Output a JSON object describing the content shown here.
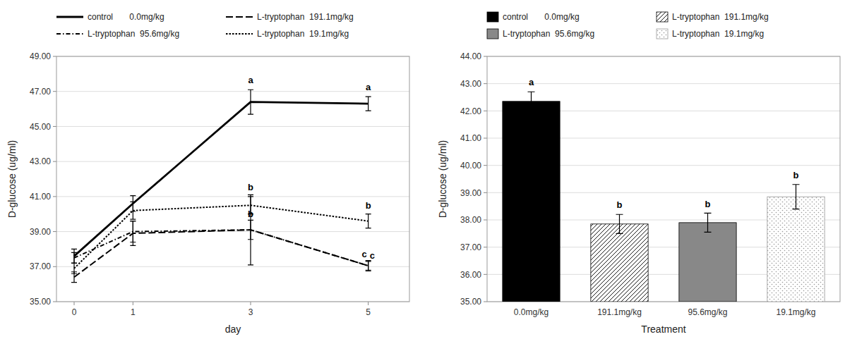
{
  "chart_data": [
    {
      "type": "line",
      "x": [
        0,
        1,
        3,
        5
      ],
      "xlim": [
        -0.3,
        5.7
      ],
      "xticks": [
        0,
        1,
        3,
        5
      ],
      "ylim": [
        35.0,
        49.0
      ],
      "yticks": [
        {
          "value": 35.0,
          "label": "35.00"
        },
        {
          "value": 37.0,
          "label": "37.00"
        },
        {
          "value": 39.0,
          "label": "39.00"
        },
        {
          "value": 41.0,
          "label": "41.00"
        },
        {
          "value": 43.0,
          "label": "43.00"
        },
        {
          "value": 45.0,
          "label": "45.00"
        },
        {
          "value": 47.0,
          "label": "47.00"
        },
        {
          "value": 49.0,
          "label": "49.00"
        }
      ],
      "xlabel": "day",
      "ylabel": "D-glucose (ug/ml)",
      "grid": true,
      "legend": "top-left",
      "series": [
        {
          "name": "control       0.0mg/kg",
          "color": "#000000",
          "line_style": "solid",
          "values": [
            37.6,
            40.6,
            46.4,
            46.3
          ],
          "errors": [
            0.4,
            0.45,
            0.7,
            0.4
          ]
        },
        {
          "name": "L-tryptophan  191.1mg/kg",
          "color": "#000000",
          "line_style": "dashed",
          "values": [
            36.4,
            38.9,
            39.1,
            37.05
          ],
          "errors": [
            0.3,
            0.7,
            2.0,
            0.25
          ]
        },
        {
          "name": "L-tryptophan  95.6mg/kg",
          "color": "#000000",
          "line_style": "dashdot",
          "values": [
            37.5,
            39.0,
            39.1,
            37.05
          ],
          "errors": [
            0.3,
            0.6,
            0.55,
            0.3
          ]
        },
        {
          "name": "L-tryptophan  19.1mg/kg",
          "color": "#000000",
          "line_style": "dotted",
          "values": [
            36.9,
            40.2,
            40.5,
            39.6
          ],
          "errors": [
            0.3,
            0.5,
            0.5,
            0.4
          ]
        }
      ],
      "annotations": [
        {
          "text": "a",
          "x": 3,
          "y": 47.35
        },
        {
          "text": "b",
          "x": 3,
          "y": 41.25
        },
        {
          "text": "b",
          "x": 3,
          "y": 39.7
        },
        {
          "text": "a",
          "x": 5,
          "y": 46.95
        },
        {
          "text": "b",
          "x": 5,
          "y": 40.2
        },
        {
          "text": "c",
          "x": 5,
          "y": 37.4
        },
        {
          "text": "c",
          "x": 5,
          "y": 37.35
        }
      ]
    },
    {
      "type": "bar",
      "categories": [
        "0.0mg/kg",
        "191.1mg/kg",
        "95.6mg/kg",
        "19.1mg/kg"
      ],
      "ylim": [
        35.0,
        44.0
      ],
      "yticks": [
        {
          "value": 35.0,
          "label": "35.00"
        },
        {
          "value": 36.0,
          "label": "36.00"
        },
        {
          "value": 37.0,
          "label": "37.00"
        },
        {
          "value": 38.0,
          "label": "38.00"
        },
        {
          "value": 39.0,
          "label": "39.00"
        },
        {
          "value": 40.0,
          "label": "40.00"
        },
        {
          "value": 41.0,
          "label": "41.00"
        },
        {
          "value": 42.0,
          "label": "42.00"
        },
        {
          "value": 43.0,
          "label": "43.00"
        },
        {
          "value": 44.0,
          "label": "44.00"
        }
      ],
      "xlabel": "Treatment",
      "ylabel": "D-glucose (ug/ml)",
      "grid": true,
      "legend": "top-left",
      "series": [
        {
          "name": "control       0.0mg/kg",
          "color": "#000000",
          "values": [
            42.35,
            null,
            null,
            null
          ],
          "errors": [
            0.35,
            null,
            null,
            null
          ]
        },
        {
          "name": "L-tryptophan  191.1mg/kg",
          "color": "#ffffff",
          "values": [
            null,
            37.85,
            null,
            null
          ],
          "errors": [
            null,
            0.35,
            null,
            null
          ]
        },
        {
          "name": "L-tryptophan  95.6mg/kg",
          "color": "#888888",
          "values": [
            null,
            null,
            37.9,
            null
          ],
          "errors": [
            null,
            null,
            0.35,
            null
          ]
        },
        {
          "name": "L-tryptophan  19.1mg/kg",
          "color": "#ffffff",
          "values": [
            null,
            null,
            null,
            38.85
          ],
          "errors": [
            null,
            null,
            null,
            0.45
          ]
        }
      ],
      "annotations": [
        {
          "text": "a",
          "x": "0.0mg/kg",
          "y": 42.85
        },
        {
          "text": "b",
          "x": "191.1mg/kg",
          "y": 38.35
        },
        {
          "text": "b",
          "x": "95.6mg/kg",
          "y": 38.4
        },
        {
          "text": "b",
          "x": "19.1mg/kg",
          "y": 39.45
        }
      ]
    }
  ]
}
